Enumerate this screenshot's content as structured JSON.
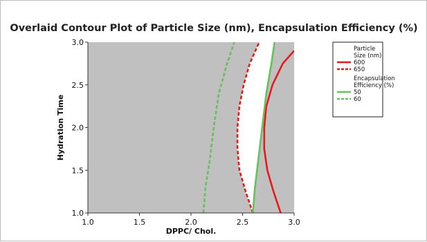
{
  "colors": {
    "plot_background": "#c0c0c0",
    "feasible_region": "#ffffff",
    "particle_size": "#e41a1c",
    "encapsulation_efficiency": "#66c15a"
  },
  "chart_data": {
    "type": "contour",
    "title": "Overlaid Contour Plot of Particle Size (nm), Encapsulation Efficiency (%)",
    "xlabel": "DPPC/ Chol.",
    "ylabel": "Hydration Time",
    "xlim": [
      1.0,
      3.0
    ],
    "ylim": [
      1.0,
      3.0
    ],
    "xticks": [
      "1.0",
      "1.5",
      "2.0",
      "2.5",
      "3.0"
    ],
    "yticks": [
      "1.0",
      "1.5",
      "2.0",
      "2.5",
      "3.0"
    ],
    "grid": false,
    "legend_position": "right",
    "legend": [
      {
        "group": "Particle Size (nm)",
        "group_lines": [
          "Particle",
          "Size (nm)"
        ],
        "items": [
          {
            "label": "600",
            "style": "solid",
            "color": "#e41a1c"
          },
          {
            "label": "650",
            "style": "dashed",
            "color": "#e41a1c"
          }
        ]
      },
      {
        "group": "Encapsulation Efficiency (%)",
        "group_lines": [
          "Encapsulation",
          "Efficiency (%)"
        ],
        "items": [
          {
            "label": "50",
            "style": "solid",
            "color": "#66c15a"
          },
          {
            "label": "60",
            "style": "dashed",
            "color": "#66c15a"
          }
        ]
      }
    ],
    "series": [
      {
        "name": "600",
        "response": "Particle Size (nm)",
        "style": "solid",
        "color": "#e41a1c",
        "points": [
          [
            2.87,
            1.0
          ],
          [
            2.8,
            1.25
          ],
          [
            2.74,
            1.5
          ],
          [
            2.71,
            1.75
          ],
          [
            2.71,
            2.0
          ],
          [
            2.73,
            2.25
          ],
          [
            2.79,
            2.5
          ],
          [
            2.89,
            2.75
          ],
          [
            3.0,
            2.9
          ]
        ]
      },
      {
        "name": "650",
        "response": "Particle Size (nm)",
        "style": "dashed",
        "color": "#e41a1c",
        "points": [
          [
            2.6,
            1.0
          ],
          [
            2.53,
            1.25
          ],
          [
            2.47,
            1.5
          ],
          [
            2.45,
            1.75
          ],
          [
            2.45,
            2.0
          ],
          [
            2.47,
            2.25
          ],
          [
            2.51,
            2.5
          ],
          [
            2.57,
            2.75
          ],
          [
            2.65,
            2.97
          ],
          [
            2.67,
            3.0
          ]
        ]
      },
      {
        "name": "50",
        "response": "Encapsulation Efficiency (%)",
        "style": "solid",
        "color": "#66c15a",
        "points": [
          [
            2.6,
            1.0
          ],
          [
            2.62,
            1.3
          ],
          [
            2.65,
            1.6
          ],
          [
            2.69,
            2.0
          ],
          [
            2.73,
            2.4
          ],
          [
            2.78,
            2.75
          ],
          [
            2.81,
            3.0
          ]
        ]
      },
      {
        "name": "60",
        "response": "Encapsulation Efficiency (%)",
        "style": "dashed",
        "color": "#66c15a",
        "points": [
          [
            2.12,
            1.0
          ],
          [
            2.14,
            1.3
          ],
          [
            2.18,
            1.6
          ],
          [
            2.22,
            2.0
          ],
          [
            2.27,
            2.4
          ],
          [
            2.35,
            2.75
          ],
          [
            2.42,
            3.0
          ]
        ]
      }
    ]
  }
}
